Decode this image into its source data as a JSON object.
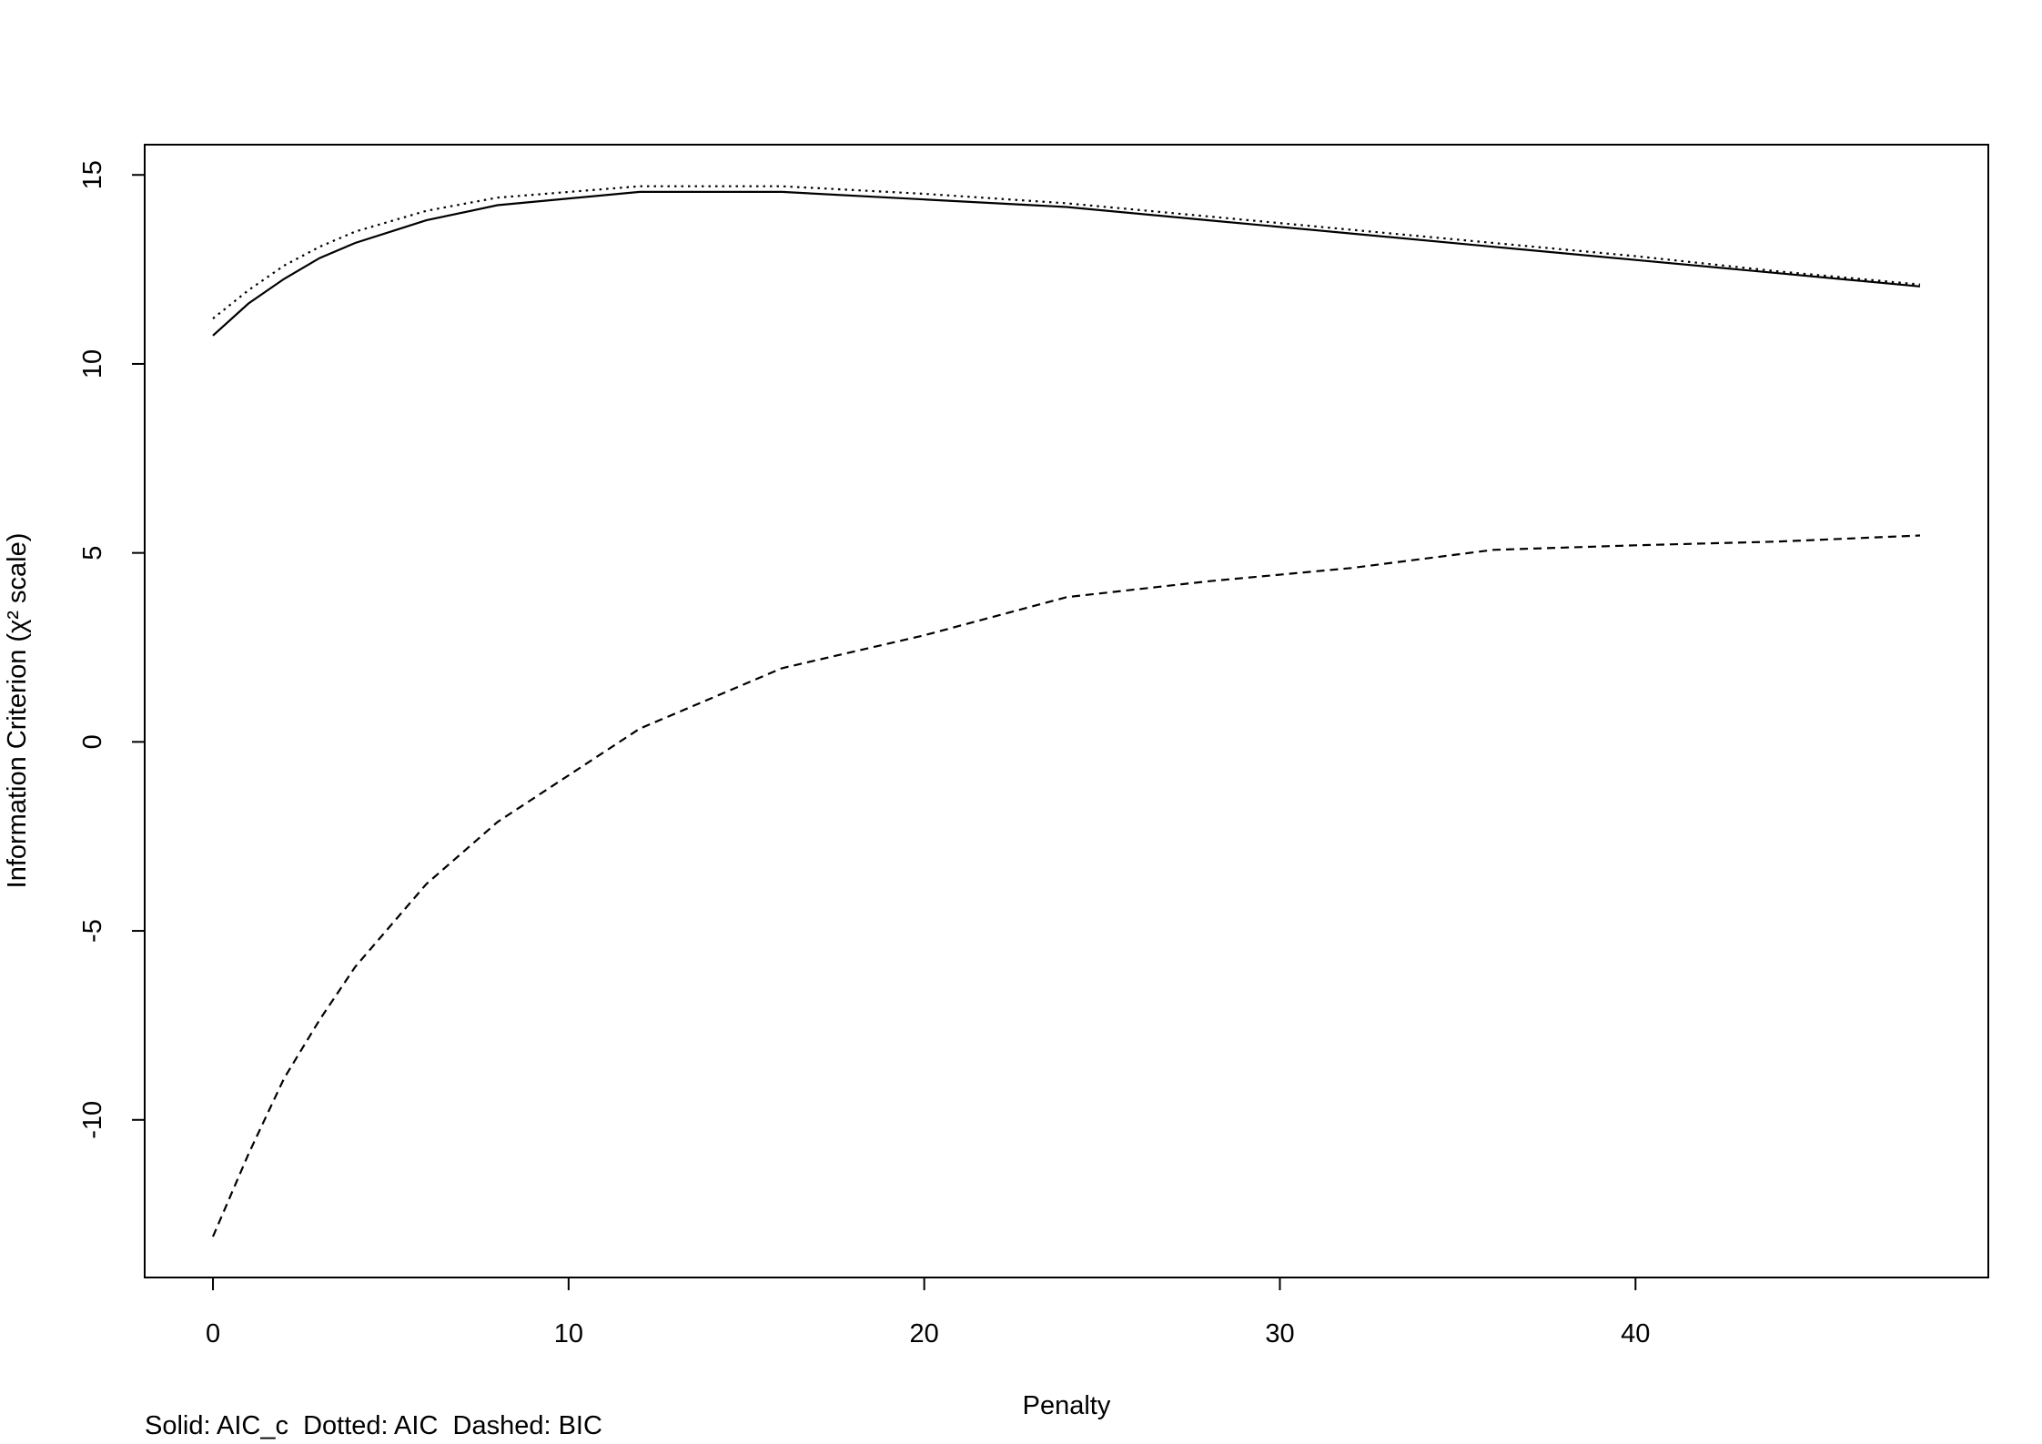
{
  "chart_data": {
    "type": "line",
    "x_label": "Penalty",
    "y_label": "Information Criterion (χ² scale)",
    "caption": "Solid: AIC_c  Dotted: AIC  Dashed: BIC",
    "x": [
      0,
      1,
      2,
      3,
      4,
      6,
      8,
      12,
      16,
      20,
      24,
      28,
      32,
      36,
      40,
      44,
      48
    ],
    "series": [
      {
        "color": "#000000",
        "linestyle": "solid",
        "values": [
          10.75,
          11.6,
          12.25,
          12.8,
          13.2,
          13.8,
          14.2,
          14.55,
          14.55,
          14.35,
          14.15,
          13.8,
          13.45,
          13.1,
          12.75,
          12.4,
          12.05
        ]
      },
      {
        "color": "#000000",
        "linestyle": "dotted",
        "values": [
          11.2,
          11.95,
          12.6,
          13.1,
          13.5,
          14.05,
          14.4,
          14.7,
          14.7,
          14.5,
          14.25,
          13.9,
          13.55,
          13.2,
          12.85,
          12.45,
          12.1
        ]
      },
      {
        "color": "#000000",
        "linestyle": "dashed",
        "values": [
          -13.09,
          -10.9,
          -8.9,
          -7.35,
          -5.95,
          -3.76,
          -2.12,
          0.35,
          1.95,
          2.82,
          3.83,
          4.25,
          4.6,
          5.08,
          5.2,
          5.3,
          5.46
        ]
      }
    ],
    "xlim": [
      -1.92,
      49.92
    ],
    "xticks": [
      0,
      10,
      20,
      30,
      40
    ],
    "ylim": [
      -14.17,
      15.8
    ],
    "yticks": [
      -10,
      -5,
      0,
      5,
      10,
      15
    ],
    "grid": false
  }
}
